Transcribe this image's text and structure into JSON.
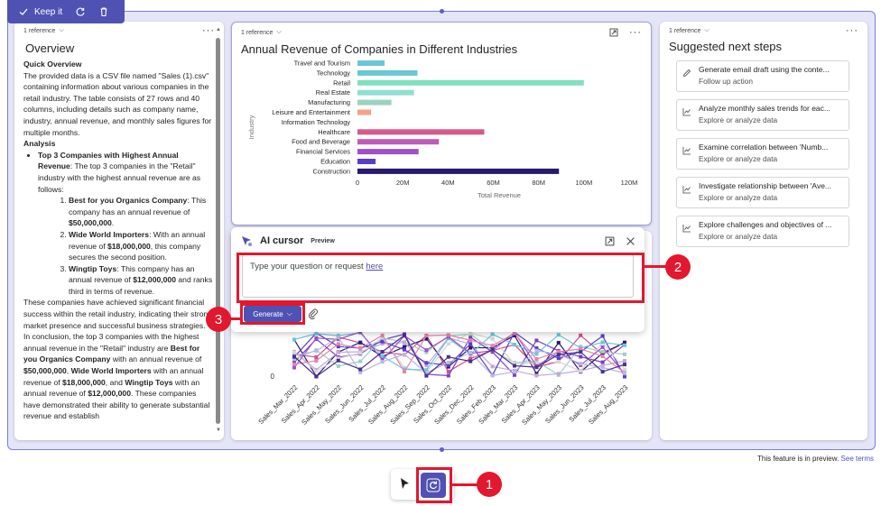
{
  "toolbar": {
    "keep_label": "Keep it"
  },
  "left_card": {
    "reference": "1 reference",
    "title": "Overview",
    "quick_overview_heading": "Quick Overview",
    "intro": "The provided data is a CSV file named \"Sales (1).csv\" containing information about various companies in the retail industry. The table consists of 27 rows and 40 columns, including details such as company name, industry, annual revenue, and monthly sales figures for multiple months.",
    "analysis_heading": "Analysis",
    "bullet_bold": "Top 3 Companies with Highest Annual Revenue",
    "bullet_rest": ": The top 3 companies in the \"Retail\" industry with the highest annual revenue are as follows:",
    "items": [
      {
        "name": "Best for you Organics Company",
        "pre": ": This company has an annual revenue of ",
        "amount": "$50,000,000",
        "post": "."
      },
      {
        "name": "Wide World Importers",
        "pre": ": With an annual revenue of ",
        "amount": "$18,000,000",
        "post": ", this company secures the second position."
      },
      {
        "name": "Wingtip Toys",
        "pre": ": This company has an annual revenue of ",
        "amount": "$12,000,000",
        "post": " and ranks third in terms of revenue."
      }
    ],
    "para1": "These companies have achieved significant financial success within the retail industry, indicating their strong market presence and successful business strategies.",
    "para2_a": "In conclusion, the top 3 companies with the highest annual revenue in the \"Retail\" industry are ",
    "para2_b1": "Best for you Organics Company",
    "para2_c": " with an annual revenue of ",
    "para2_b2": "$50,000,000",
    "para2_d": ", ",
    "para2_b3": "Wide World Importers",
    "para2_e": " with an annual revenue of ",
    "para2_b4": "$18,000,000",
    "para2_f": ", and ",
    "para2_b5": "Wingtip Toys",
    "para2_g": " with an annual revenue of ",
    "para2_b6": "$12,000,000",
    "para2_h": ". These companies have demonstrated their ability to generate substantial revenue and establish"
  },
  "mid_card": {
    "reference": "1 reference"
  },
  "chart_data": [
    {
      "type": "bar",
      "orientation": "horizontal",
      "title": "Annual Revenue of Companies in Different Industries",
      "xlabel": "Total Revenue",
      "ylabel": "Industry",
      "categories": [
        "Travel and Tourism",
        "Technology",
        "Retail",
        "Real Estate",
        "Manufacturing",
        "Leisure and Entertainment",
        "Information Technology",
        "Healthcare",
        "Food and Beverage",
        "Financial Services",
        "Education",
        "Construction"
      ],
      "values": [
        12,
        26.5,
        100,
        25,
        15,
        6,
        0,
        56,
        36,
        27,
        8,
        89
      ],
      "value_units": "M",
      "colors": [
        "#6cc5dc",
        "#68c8d4",
        "#7fe0c0",
        "#8fe0d2",
        "#9cd2c0",
        "#f4a08a",
        "#cccccc",
        "#d6588a",
        "#c05cb8",
        "#a050c8",
        "#5a3ec8",
        "#2a1a6e"
      ],
      "xticks": [
        "0",
        "20M",
        "40M",
        "60M",
        "80M",
        "100M",
        "120M"
      ],
      "xlim": [
        0,
        120
      ]
    },
    {
      "type": "line",
      "categories": [
        "Sales_Mar_2022",
        "Sales_Apr_2022",
        "Sales_May_2022",
        "Sales_Jun_2022",
        "Sales_Jul_2022",
        "Sales_Aug_2022",
        "Sales_Sep_2022",
        "Sales_Oct_2022",
        "Sales_Dec_2022",
        "Sales_Feb_2023",
        "Sales_Mar_2023",
        "Sales_Apr_2023",
        "Sales_May_2023",
        "Sales_Jun_2023",
        "Sales_Jul_2023",
        "Sales_Aug_2023"
      ],
      "y_tick_label": "0"
    }
  ],
  "ai_panel": {
    "title": "AI cursor",
    "badge": "Preview",
    "placeholder_a": "Type your question or request ",
    "placeholder_link": "here",
    "generate_label": "Generate"
  },
  "right_card": {
    "reference": "1 reference",
    "title": "Suggested next steps",
    "steps": [
      {
        "title": "Generate email draft using the conte...",
        "sub": "Follow up action",
        "icon": "pencil-icon"
      },
      {
        "title": "Analyze monthly sales trends for eac...",
        "sub": "Explore or analyze data",
        "icon": "chart-icon"
      },
      {
        "title": "Examine correlation between 'Numb...",
        "sub": "Explore or analyze data",
        "icon": "chart-icon"
      },
      {
        "title": "Investigate relationship between 'Ave...",
        "sub": "Explore or analyze data",
        "icon": "chart-icon"
      },
      {
        "title": "Explore challenges and objectives of ...",
        "sub": "Explore or analyze data",
        "icon": "chart-icon"
      }
    ]
  },
  "footer": {
    "preview_text": "This feature is in preview.",
    "terms_link": "See terms"
  },
  "callouts": [
    "1",
    "2",
    "3"
  ],
  "colors": {
    "accent": "#4f52b2",
    "callout": "#e3172e"
  }
}
